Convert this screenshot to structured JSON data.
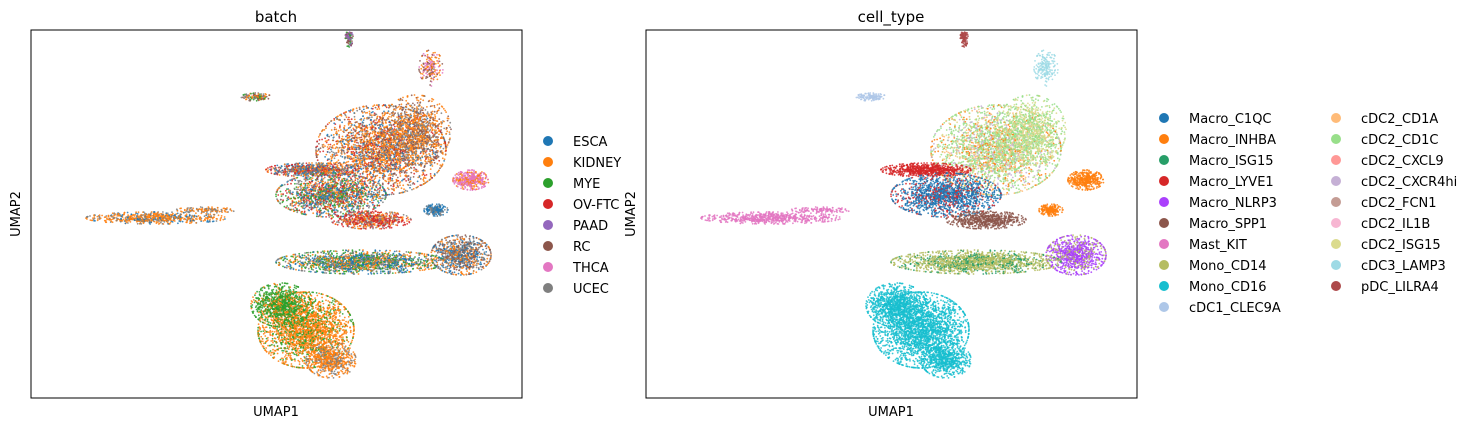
{
  "chart_data": [
    {
      "type": "scatter",
      "title": "batch",
      "xlabel": "UMAP1",
      "ylabel": "UMAP2",
      "grid": false,
      "ticks_shown": false,
      "legend_position": "right",
      "legend_columns": 1,
      "series": [
        {
          "name": "ESCA",
          "color": "#1f77b4"
        },
        {
          "name": "KIDNEY",
          "color": "#ff7f0e"
        },
        {
          "name": "MYE",
          "color": "#2ca02c"
        },
        {
          "name": "OV-FTC",
          "color": "#d62728"
        },
        {
          "name": "PAAD",
          "color": "#9467bd"
        },
        {
          "name": "RC",
          "color": "#8c564b"
        },
        {
          "name": "THCA",
          "color": "#e377c2"
        },
        {
          "name": "UCEC",
          "color": "#7f7f7f"
        }
      ]
    },
    {
      "type": "scatter",
      "title": "cell_type",
      "xlabel": "UMAP1",
      "ylabel": "UMAP2",
      "grid": false,
      "ticks_shown": false,
      "legend_position": "right",
      "legend_columns": 2,
      "series": [
        {
          "name": "Macro_C1QC",
          "color": "#1f77b4"
        },
        {
          "name": "Macro_INHBA",
          "color": "#ff7f0e"
        },
        {
          "name": "Macro_ISG15",
          "color": "#279e68"
        },
        {
          "name": "Macro_LYVE1",
          "color": "#d62728"
        },
        {
          "name": "Macro_NLRP3",
          "color": "#aa40fc"
        },
        {
          "name": "Macro_SPP1",
          "color": "#8c564b"
        },
        {
          "name": "Mast_KIT",
          "color": "#e377c2"
        },
        {
          "name": "Mono_CD14",
          "color": "#b5bd61"
        },
        {
          "name": "Mono_CD16",
          "color": "#17becf"
        },
        {
          "name": "cDC1_CLEC9A",
          "color": "#aec7e8"
        },
        {
          "name": "cDC2_CD1A",
          "color": "#ffbb78"
        },
        {
          "name": "cDC2_CD1C",
          "color": "#98df8a"
        },
        {
          "name": "cDC2_CXCL9",
          "color": "#ff9896"
        },
        {
          "name": "cDC2_CXCR4hi",
          "color": "#c5b0d5"
        },
        {
          "name": "cDC2_FCN1",
          "color": "#c49c94"
        },
        {
          "name": "cDC2_IL1B",
          "color": "#f7b6d2"
        },
        {
          "name": "cDC2_ISG15",
          "color": "#dbdb8d"
        },
        {
          "name": "cDC3_LAMP3",
          "color": "#9edae5"
        },
        {
          "name": "pDC_LILRA4",
          "color": "#ad494a"
        }
      ]
    }
  ]
}
